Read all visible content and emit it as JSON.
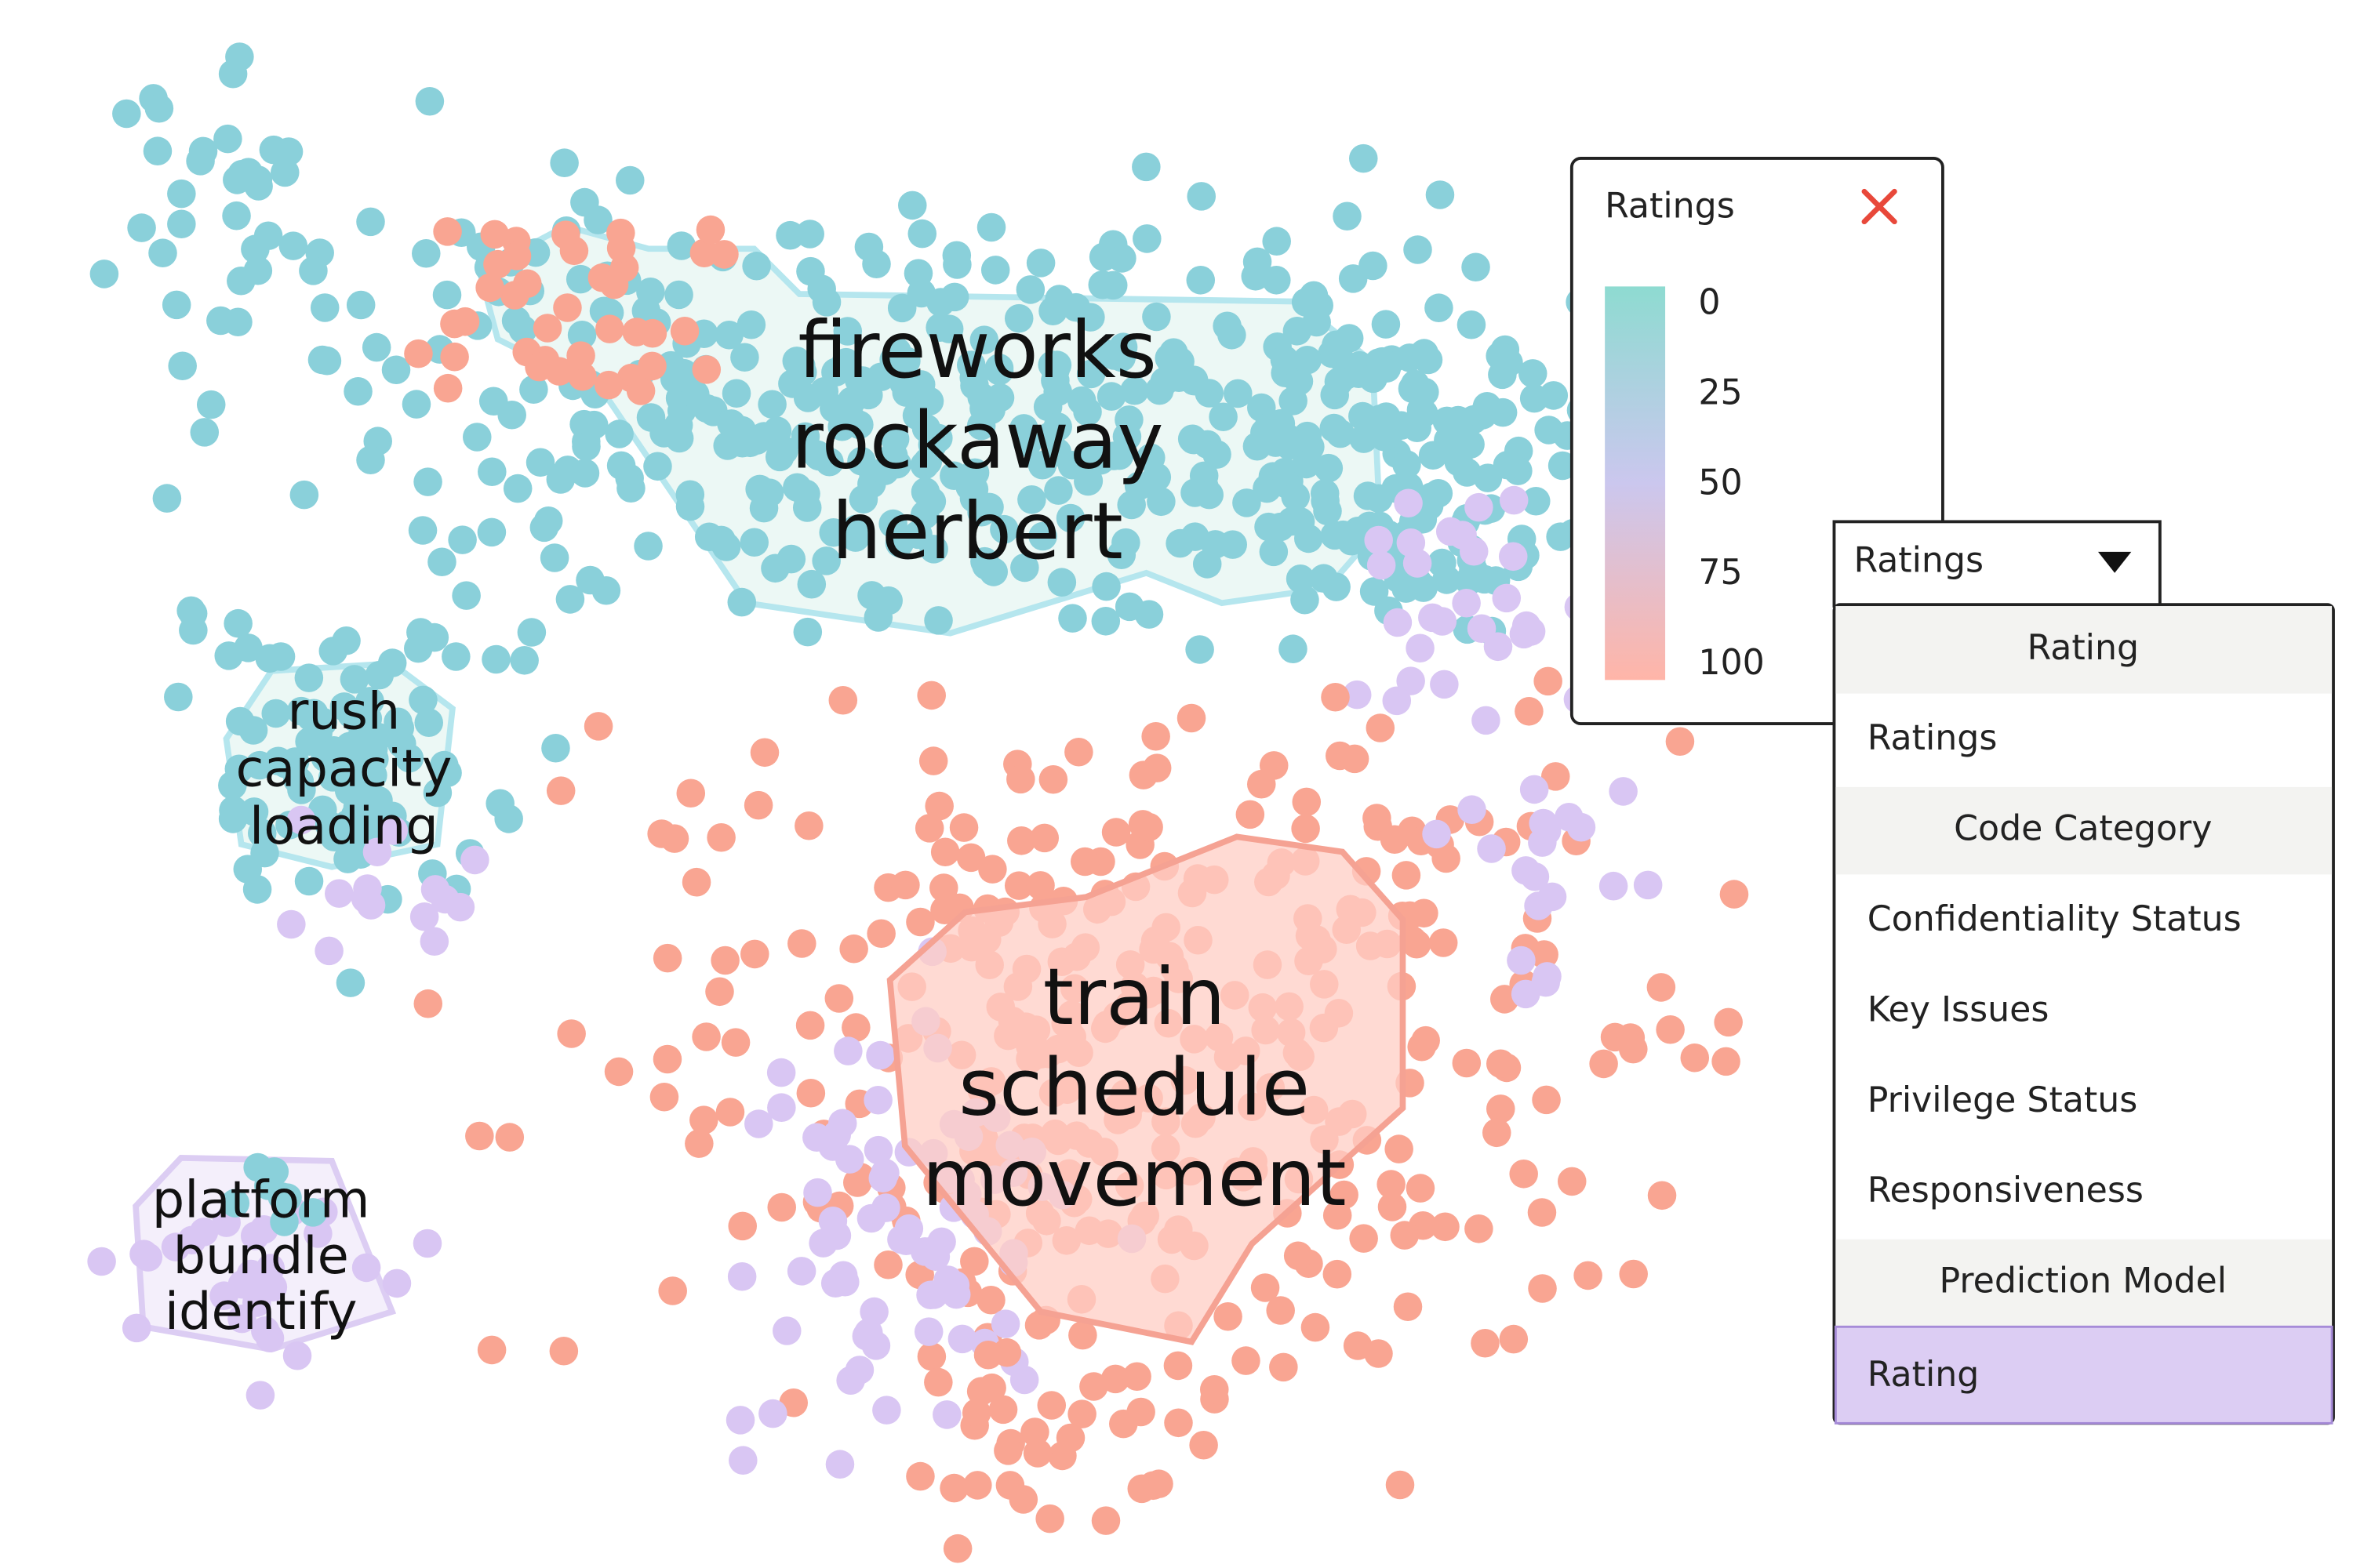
{
  "clusters": [
    {
      "lines": [
        "fireworks",
        "rockaway",
        "herbert"
      ]
    },
    {
      "lines": [
        "rush",
        "capacity",
        "loading"
      ]
    },
    {
      "lines": [
        "platform",
        "bundle",
        "identify"
      ]
    },
    {
      "lines": [
        "train",
        "schedule",
        "movement"
      ]
    }
  ],
  "legend": {
    "title": "Ratings",
    "ticks": [
      0,
      25,
      50,
      75,
      100
    ]
  },
  "dropdown": {
    "selected": "Ratings",
    "groups": [
      {
        "header": "Rating",
        "options": [
          "Ratings"
        ]
      },
      {
        "header": "Code Category",
        "options": [
          "Confidentiality Status",
          "Key Issues",
          "Privilege Status",
          "Responsiveness"
        ]
      },
      {
        "header": "Prediction Model",
        "options": [
          "Rating"
        ]
      }
    ]
  }
}
